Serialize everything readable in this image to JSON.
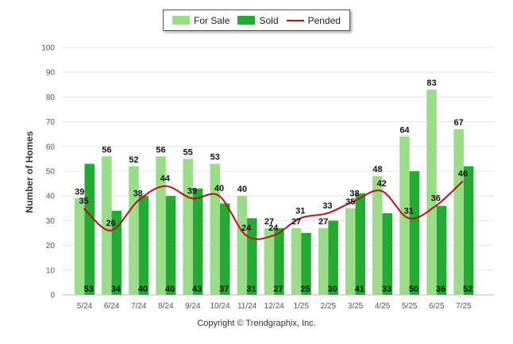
{
  "legend": {
    "for_sale": "For Sale",
    "sold": "Sold",
    "pended": "Pended"
  },
  "copyright": "Copyright © Trendgraphix, Inc.",
  "colors": {
    "for_sale": "#99dd88",
    "sold": "#22aa33",
    "pended": "#bb1111",
    "grid": "#e4e4e4",
    "axis_text": "#555555"
  },
  "chart_data": {
    "type": "bar",
    "title": "",
    "xlabel": "",
    "ylabel": "Number of Homes",
    "ylim": [
      0,
      100
    ],
    "yticks": [
      0,
      10,
      20,
      30,
      40,
      50,
      60,
      70,
      80,
      90,
      100
    ],
    "grid": true,
    "legend_position": "top-center",
    "categories": [
      "5/24",
      "6/24",
      "7/24",
      "8/24",
      "9/24",
      "10/24",
      "11/24",
      "12/24",
      "1/25",
      "2/25",
      "3/25",
      "4/25",
      "5/25",
      "6/25",
      "7/25"
    ],
    "series": [
      {
        "name": "For Sale",
        "kind": "bar",
        "values": [
          39,
          56,
          52,
          56,
          55,
          53,
          40,
          27,
          27,
          27,
          35,
          48,
          64,
          83,
          67
        ]
      },
      {
        "name": "Sold",
        "kind": "bar",
        "values": [
          53,
          34,
          40,
          40,
          43,
          37,
          31,
          27,
          25,
          30,
          41,
          33,
          50,
          36,
          52
        ]
      },
      {
        "name": "Pended",
        "kind": "line",
        "values": [
          35,
          26,
          38,
          44,
          39,
          40,
          24,
          24,
          31,
          33,
          38,
          42,
          31,
          36,
          46
        ]
      }
    ]
  }
}
